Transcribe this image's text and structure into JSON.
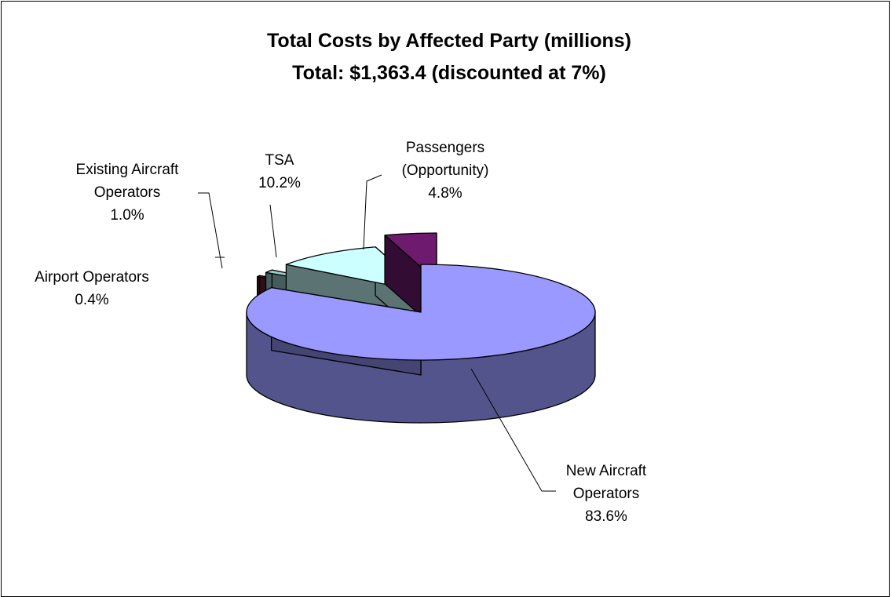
{
  "chart_data": {
    "type": "pie",
    "style": "3d-exploded",
    "title": "Total Costs by Affected Party (millions)",
    "subtitle": "Total: $1,363.4 (discounted at 7%)",
    "categories": [
      "New Aircraft Operators",
      "Airport Operators",
      "Existing Aircraft Operators",
      "TSA",
      "Passengers (Opportunity)"
    ],
    "values": [
      83.6,
      0.4,
      1.0,
      10.2,
      4.8
    ],
    "value_unit": "%",
    "colors": {
      "new_aircraft": "#9999FF",
      "airport": "#662233",
      "existing_aircraft": "#99CCCC",
      "tsa": "#CCFFFF",
      "passengers": "#6E1A6E"
    },
    "labels": [
      {
        "key": "new_aircraft",
        "lines": [
          "New Aircraft",
          "Operators",
          "83.6%"
        ]
      },
      {
        "key": "airport",
        "lines": [
          "Airport Operators",
          "0.4%"
        ]
      },
      {
        "key": "existing_aircraft",
        "lines": [
          "Existing Aircraft",
          "Operators",
          "1.0%"
        ]
      },
      {
        "key": "tsa",
        "lines": [
          "TSA",
          "10.2%"
        ]
      },
      {
        "key": "passengers",
        "lines": [
          "Passengers",
          "(Opportunity)",
          "4.8%"
        ]
      }
    ],
    "legend": "none"
  }
}
